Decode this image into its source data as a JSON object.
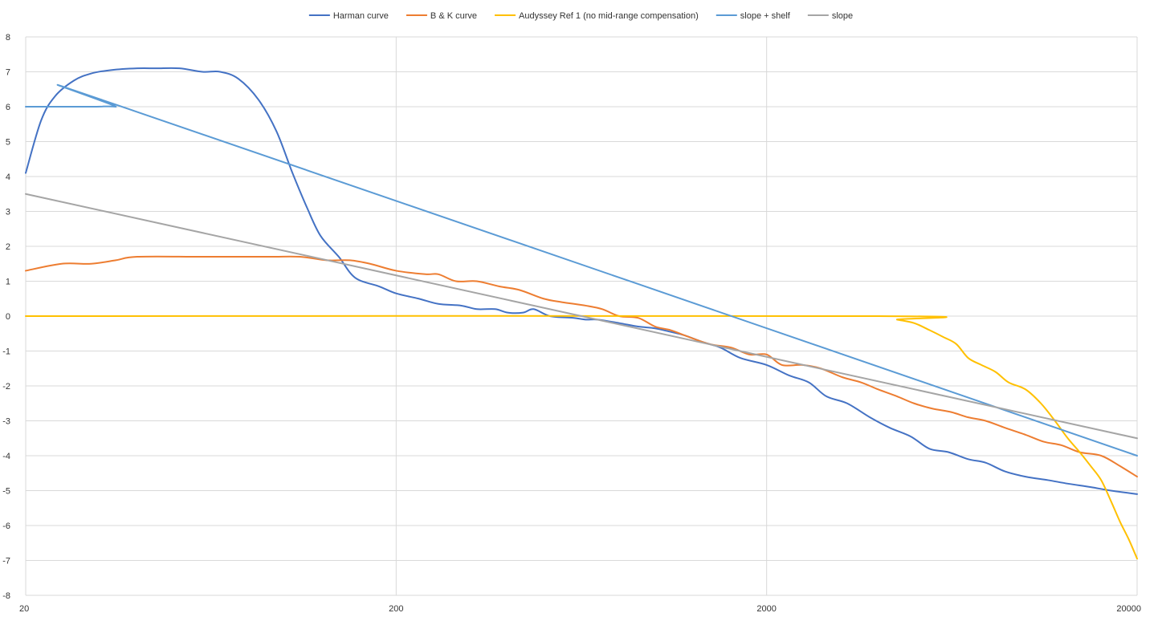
{
  "chart_data": {
    "type": "line",
    "x_scale": "log",
    "xlim": [
      20,
      20000
    ],
    "ylim": [
      -8,
      8
    ],
    "x_ticks": [
      "20",
      "200",
      "2000",
      "20000"
    ],
    "y_ticks": [
      "8",
      "7",
      "6",
      "5",
      "4",
      "3",
      "2",
      "1",
      "0",
      "-1",
      "-2",
      "-3",
      "-4",
      "-5",
      "-6",
      "-7",
      "-8"
    ],
    "grid": true,
    "legend_position": "top",
    "series": [
      {
        "name": "Harman curve",
        "color": "#4472C4",
        "points": [
          [
            20,
            4.1
          ],
          [
            22,
            5.6
          ],
          [
            24,
            6.3
          ],
          [
            27,
            6.75
          ],
          [
            30,
            6.95
          ],
          [
            34,
            7.05
          ],
          [
            40,
            7.1
          ],
          [
            45,
            7.1
          ],
          [
            52,
            7.1
          ],
          [
            60,
            7.0
          ],
          [
            67,
            7.0
          ],
          [
            75,
            6.8
          ],
          [
            85,
            6.2
          ],
          [
            95,
            5.3
          ],
          [
            105,
            4.1
          ],
          [
            115,
            3.1
          ],
          [
            125,
            2.3
          ],
          [
            140,
            1.7
          ],
          [
            155,
            1.1
          ],
          [
            180,
            0.85
          ],
          [
            200,
            0.65
          ],
          [
            230,
            0.5
          ],
          [
            260,
            0.35
          ],
          [
            300,
            0.3
          ],
          [
            330,
            0.2
          ],
          [
            370,
            0.2
          ],
          [
            400,
            0.1
          ],
          [
            440,
            0.1
          ],
          [
            470,
            0.2
          ],
          [
            520,
            0.0
          ],
          [
            600,
            -0.05
          ],
          [
            650,
            -0.1
          ],
          [
            700,
            -0.1
          ],
          [
            800,
            -0.2
          ],
          [
            900,
            -0.3
          ],
          [
            1000,
            -0.35
          ],
          [
            1100,
            -0.45
          ],
          [
            1200,
            -0.55
          ],
          [
            1350,
            -0.75
          ],
          [
            1500,
            -0.9
          ],
          [
            1700,
            -1.2
          ],
          [
            2000,
            -1.4
          ],
          [
            2300,
            -1.7
          ],
          [
            2600,
            -1.9
          ],
          [
            2900,
            -2.3
          ],
          [
            3300,
            -2.5
          ],
          [
            3800,
            -2.9
          ],
          [
            4300,
            -3.2
          ],
          [
            4900,
            -3.45
          ],
          [
            5500,
            -3.8
          ],
          [
            6200,
            -3.9
          ],
          [
            7000,
            -4.1
          ],
          [
            7800,
            -4.2
          ],
          [
            8800,
            -4.45
          ],
          [
            10000,
            -4.6
          ],
          [
            11500,
            -4.7
          ],
          [
            13000,
            -4.8
          ],
          [
            15000,
            -4.9
          ],
          [
            17000,
            -5.0
          ],
          [
            20000,
            -5.1
          ]
        ]
      },
      {
        "name": "B & K curve",
        "color": "#ED7D31",
        "points": [
          [
            20,
            1.3
          ],
          [
            25,
            1.5
          ],
          [
            30,
            1.5
          ],
          [
            35,
            1.6
          ],
          [
            40,
            1.7
          ],
          [
            60,
            1.7
          ],
          [
            90,
            1.7
          ],
          [
            110,
            1.7
          ],
          [
            130,
            1.6
          ],
          [
            150,
            1.6
          ],
          [
            170,
            1.5
          ],
          [
            200,
            1.3
          ],
          [
            240,
            1.2
          ],
          [
            260,
            1.2
          ],
          [
            290,
            1.0
          ],
          [
            330,
            1.0
          ],
          [
            380,
            0.85
          ],
          [
            430,
            0.75
          ],
          [
            500,
            0.5
          ],
          [
            560,
            0.4
          ],
          [
            650,
            0.3
          ],
          [
            720,
            0.2
          ],
          [
            800,
            0.0
          ],
          [
            900,
            -0.05
          ],
          [
            1000,
            -0.3
          ],
          [
            1100,
            -0.4
          ],
          [
            1200,
            -0.55
          ],
          [
            1400,
            -0.8
          ],
          [
            1600,
            -0.9
          ],
          [
            1800,
            -1.1
          ],
          [
            2000,
            -1.1
          ],
          [
            2200,
            -1.4
          ],
          [
            2500,
            -1.4
          ],
          [
            2800,
            -1.5
          ],
          [
            3200,
            -1.75
          ],
          [
            3600,
            -1.9
          ],
          [
            4000,
            -2.1
          ],
          [
            4500,
            -2.3
          ],
          [
            5000,
            -2.5
          ],
          [
            5600,
            -2.65
          ],
          [
            6300,
            -2.75
          ],
          [
            7000,
            -2.9
          ],
          [
            7800,
            -3.0
          ],
          [
            8800,
            -3.2
          ],
          [
            10000,
            -3.4
          ],
          [
            11200,
            -3.6
          ],
          [
            12500,
            -3.7
          ],
          [
            14000,
            -3.9
          ],
          [
            16000,
            -4.0
          ],
          [
            18000,
            -4.3
          ],
          [
            20000,
            -4.6
          ]
        ]
      },
      {
        "name": "Audyssey Ref 1 (no mid-range compensation)",
        "color": "#FFC000",
        "points": [
          [
            20,
            0
          ],
          [
            4000,
            0
          ],
          [
            4500,
            -0.1
          ],
          [
            5000,
            -0.2
          ],
          [
            5500,
            -0.4
          ],
          [
            6000,
            -0.6
          ],
          [
            6500,
            -0.8
          ],
          [
            7000,
            -1.2
          ],
          [
            7600,
            -1.4
          ],
          [
            8300,
            -1.6
          ],
          [
            9000,
            -1.9
          ],
          [
            10000,
            -2.1
          ],
          [
            11000,
            -2.5
          ],
          [
            12000,
            -3.0
          ],
          [
            13000,
            -3.5
          ],
          [
            14000,
            -3.9
          ],
          [
            15000,
            -4.3
          ],
          [
            16000,
            -4.7
          ],
          [
            17000,
            -5.3
          ],
          [
            18000,
            -5.9
          ],
          [
            19000,
            -6.4
          ],
          [
            20000,
            -6.95
          ]
        ]
      },
      {
        "name": "slope + shelf",
        "color": "#5B9BD5",
        "points": [
          [
            20,
            6.0
          ],
          [
            30,
            6.0
          ],
          [
            35,
            6.0
          ],
          [
            40,
            5.85
          ],
          [
            20000,
            -4.0
          ]
        ]
      },
      {
        "name": "slope",
        "color": "#A5A5A5",
        "points": [
          [
            20,
            3.5
          ],
          [
            20000,
            -3.5
          ]
        ]
      }
    ]
  }
}
